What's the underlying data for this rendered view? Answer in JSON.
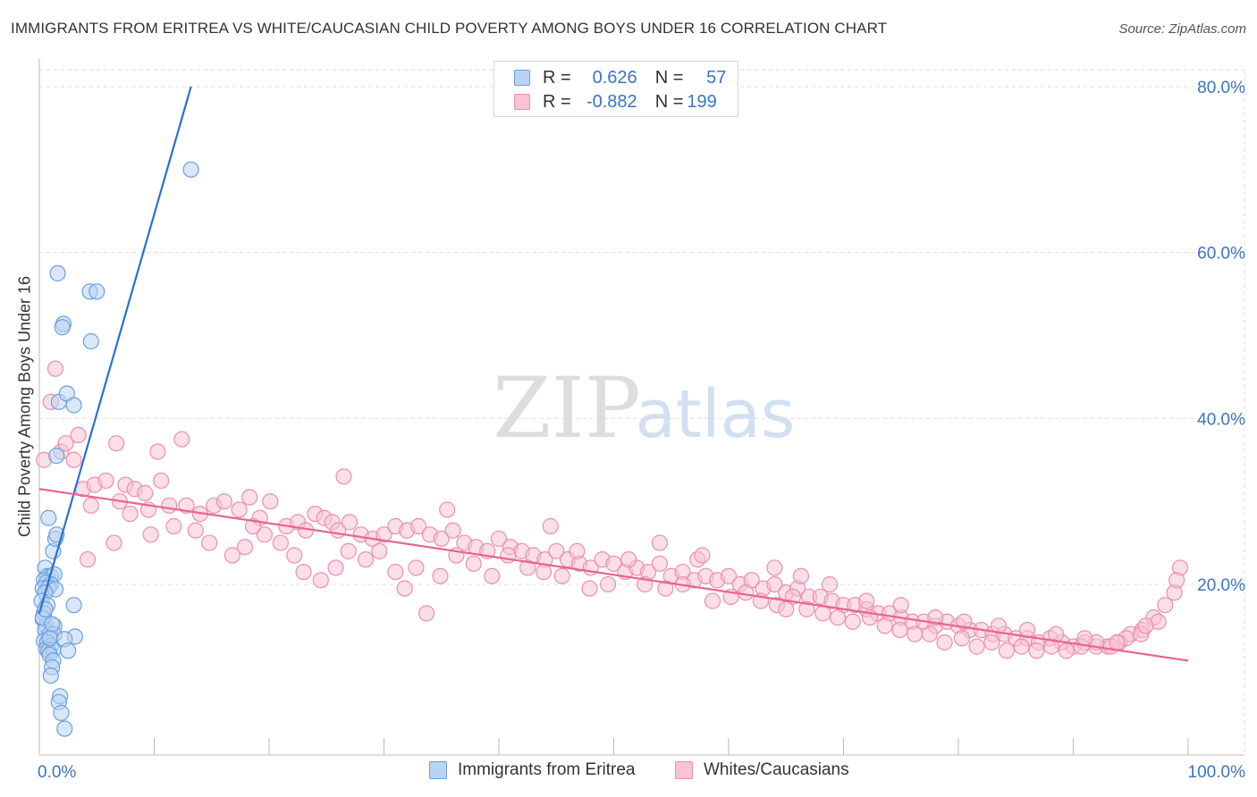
{
  "title": "IMMIGRANTS FROM ERITREA VS WHITE/CAUCASIAN CHILD POVERTY AMONG BOYS UNDER 16 CORRELATION CHART",
  "source": "Source: ZipAtlas.com",
  "watermark": {
    "zip": "ZIP",
    "atlas": "atlas"
  },
  "colors": {
    "blue_fill": "#b9d3f3",
    "blue_stroke": "#6a9fe0",
    "blue_line": "#2a6fd1",
    "pink_fill": "#f8c3d2",
    "pink_stroke": "#ea8fae",
    "pink_line": "#e8648f",
    "axis_label": "#3a74c4",
    "grid": "#dddddd"
  },
  "legend_top": [
    {
      "r_label": "R =",
      "r_value": "0.626",
      "n_label": "N =",
      "n_value": "57"
    },
    {
      "r_label": "R =",
      "r_value": "-0.882",
      "n_label": "N =",
      "n_value": "199"
    }
  ],
  "legend_bottom": [
    "Immigrants from Eritrea",
    "Whites/Caucasians"
  ],
  "chart_data": {
    "type": "scatter",
    "title": "IMMIGRANTS FROM ERITREA VS WHITE/CAUCASIAN CHILD POVERTY AMONG BOYS UNDER 16 CORRELATION CHART",
    "xlabel": "",
    "ylabel": "Child Poverty Among Boys Under 16",
    "xlim": [
      0,
      100
    ],
    "ylim": [
      0,
      82
    ],
    "x_tick_labels": [
      "0.0%",
      "100.0%"
    ],
    "y_ticks": [
      20,
      40,
      60,
      80
    ],
    "y_tick_labels": [
      "20.0%",
      "40.0%",
      "60.0%",
      "80.0%"
    ],
    "grid": true,
    "legend_placement": "top-center",
    "series": [
      {
        "name": "Immigrants from Eritrea",
        "color": "#6a9fe0",
        "trendline": {
          "x1": 0,
          "y1": 16.5,
          "x2": 13.2,
          "y2": 80
        },
        "points": [
          [
            13.2,
            70.0
          ],
          [
            1.6,
            57.5
          ],
          [
            4.4,
            55.3
          ],
          [
            5.0,
            55.3
          ],
          [
            2.1,
            51.4
          ],
          [
            2.0,
            51.0
          ],
          [
            4.5,
            49.3
          ],
          [
            1.7,
            42.0
          ],
          [
            2.4,
            43.0
          ],
          [
            3.0,
            41.6
          ],
          [
            1.5,
            35.5
          ],
          [
            0.8,
            28.0
          ],
          [
            1.2,
            24.0
          ],
          [
            1.4,
            25.5
          ],
          [
            1.5,
            26.0
          ],
          [
            0.5,
            22.0
          ],
          [
            0.7,
            21.0
          ],
          [
            1.0,
            21.0
          ],
          [
            1.3,
            21.2
          ],
          [
            0.4,
            20.5
          ],
          [
            0.6,
            20.2
          ],
          [
            1.0,
            20.0
          ],
          [
            0.3,
            19.5
          ],
          [
            0.8,
            19.6
          ],
          [
            1.4,
            19.4
          ],
          [
            0.5,
            19.0
          ],
          [
            0.2,
            18.0
          ],
          [
            0.7,
            17.5
          ],
          [
            3.0,
            17.5
          ],
          [
            0.4,
            16.5
          ],
          [
            0.3,
            15.8
          ],
          [
            0.6,
            15.0
          ],
          [
            1.3,
            15.0
          ],
          [
            0.5,
            14.5
          ],
          [
            0.9,
            14.0
          ],
          [
            1.3,
            14.0
          ],
          [
            3.1,
            13.7
          ],
          [
            2.2,
            13.4
          ],
          [
            0.4,
            13.2
          ],
          [
            0.7,
            13.0
          ],
          [
            1.0,
            12.6
          ],
          [
            0.6,
            12.2
          ],
          [
            0.8,
            12.0
          ],
          [
            1.2,
            12.1
          ],
          [
            2.5,
            12.0
          ],
          [
            0.9,
            11.5
          ],
          [
            1.2,
            10.8
          ],
          [
            1.1,
            10.0
          ],
          [
            1.0,
            9.0
          ],
          [
            1.8,
            6.5
          ],
          [
            1.7,
            5.8
          ],
          [
            1.9,
            4.5
          ],
          [
            2.2,
            2.6
          ],
          [
            0.3,
            16.0
          ],
          [
            0.5,
            17.0
          ],
          [
            1.1,
            15.2
          ],
          [
            0.9,
            13.5
          ]
        ]
      },
      {
        "name": "Whites/Caucasians",
        "color": "#ea8fae",
        "trendline": {
          "x1": 0,
          "y1": 31.5,
          "x2": 100,
          "y2": 10.8
        },
        "points": [
          [
            1.4,
            46.0
          ],
          [
            1.0,
            42.0
          ],
          [
            1.9,
            36.0
          ],
          [
            0.4,
            35.0
          ],
          [
            2.3,
            37.0
          ],
          [
            3.4,
            38.0
          ],
          [
            3.0,
            35.0
          ],
          [
            6.7,
            37.0
          ],
          [
            10.3,
            36.0
          ],
          [
            12.4,
            37.5
          ],
          [
            3.8,
            31.5
          ],
          [
            4.8,
            32.0
          ],
          [
            5.8,
            32.5
          ],
          [
            7.5,
            32.0
          ],
          [
            8.3,
            31.5
          ],
          [
            9.2,
            31.0
          ],
          [
            10.6,
            32.5
          ],
          [
            12.8,
            29.5
          ],
          [
            4.5,
            29.5
          ],
          [
            7.9,
            28.5
          ],
          [
            9.5,
            29.0
          ],
          [
            11.3,
            29.5
          ],
          [
            14.0,
            28.5
          ],
          [
            15.2,
            29.5
          ],
          [
            16.1,
            30.0
          ],
          [
            17.4,
            29.0
          ],
          [
            18.3,
            30.5
          ],
          [
            19.2,
            28.0
          ],
          [
            20.1,
            30.0
          ],
          [
            21.5,
            27.0
          ],
          [
            22.5,
            27.5
          ],
          [
            23.2,
            26.5
          ],
          [
            24.0,
            28.5
          ],
          [
            24.8,
            28.0
          ],
          [
            25.5,
            27.5
          ],
          [
            26.0,
            26.5
          ],
          [
            27.0,
            27.5
          ],
          [
            28.0,
            26.0
          ],
          [
            29.0,
            25.5
          ],
          [
            30.0,
            26.0
          ],
          [
            31.0,
            27.0
          ],
          [
            32.0,
            26.5
          ],
          [
            33.0,
            27.0
          ],
          [
            34.0,
            26.0
          ],
          [
            35.0,
            25.5
          ],
          [
            36.0,
            26.5
          ],
          [
            37.0,
            25.0
          ],
          [
            38.0,
            24.5
          ],
          [
            39.0,
            24.0
          ],
          [
            40.0,
            25.5
          ],
          [
            41.0,
            24.5
          ],
          [
            42.0,
            24.0
          ],
          [
            43.0,
            23.5
          ],
          [
            44.0,
            23.0
          ],
          [
            45.0,
            24.0
          ],
          [
            46.0,
            23.0
          ],
          [
            47.0,
            22.5
          ],
          [
            48.0,
            22.0
          ],
          [
            49.0,
            23.0
          ],
          [
            50.0,
            22.5
          ],
          [
            51.0,
            21.5
          ],
          [
            52.0,
            22.0
          ],
          [
            53.0,
            21.5
          ],
          [
            54.0,
            22.5
          ],
          [
            55.0,
            21.0
          ],
          [
            56.0,
            21.5
          ],
          [
            57.0,
            20.5
          ],
          [
            58.0,
            21.0
          ],
          [
            59.0,
            20.5
          ],
          [
            60.0,
            21.0
          ],
          [
            61.0,
            20.0
          ],
          [
            62.0,
            20.5
          ],
          [
            63.0,
            19.5
          ],
          [
            64.0,
            20.0
          ],
          [
            65.0,
            19.0
          ],
          [
            66.0,
            19.5
          ],
          [
            67.0,
            18.5
          ],
          [
            68.0,
            18.5
          ],
          [
            69.0,
            18.0
          ],
          [
            70.0,
            17.5
          ],
          [
            71.0,
            17.5
          ],
          [
            72.0,
            17.0
          ],
          [
            73.0,
            16.5
          ],
          [
            74.0,
            16.5
          ],
          [
            75.0,
            16.0
          ],
          [
            76.0,
            15.5
          ],
          [
            77.0,
            15.5
          ],
          [
            78.0,
            15.0
          ],
          [
            79.0,
            15.5
          ],
          [
            80.0,
            15.0
          ],
          [
            81.0,
            14.5
          ],
          [
            82.0,
            14.5
          ],
          [
            83.0,
            14.0
          ],
          [
            84.0,
            14.0
          ],
          [
            85.0,
            13.5
          ],
          [
            86.0,
            13.5
          ],
          [
            87.0,
            13.0
          ],
          [
            88.0,
            13.5
          ],
          [
            89.0,
            13.0
          ],
          [
            90.0,
            12.5
          ],
          [
            91.0,
            13.0
          ],
          [
            92.0,
            12.5
          ],
          [
            93.0,
            12.5
          ],
          [
            94.0,
            13.0
          ],
          [
            95.0,
            14.0
          ],
          [
            96.0,
            14.5
          ],
          [
            97.0,
            16.0
          ],
          [
            98.0,
            17.5
          ],
          [
            98.8,
            19.0
          ],
          [
            99.3,
            22.0
          ],
          [
            99.0,
            20.5
          ],
          [
            4.2,
            23.0
          ],
          [
            6.5,
            25.0
          ],
          [
            9.7,
            26.0
          ],
          [
            11.7,
            27.0
          ],
          [
            13.6,
            26.5
          ],
          [
            14.8,
            25.0
          ],
          [
            16.8,
            23.5
          ],
          [
            17.9,
            24.5
          ],
          [
            19.6,
            26.0
          ],
          [
            21.0,
            25.0
          ],
          [
            22.2,
            23.5
          ],
          [
            23.0,
            21.5
          ],
          [
            24.5,
            20.5
          ],
          [
            25.8,
            22.0
          ],
          [
            26.9,
            24.0
          ],
          [
            28.4,
            23.0
          ],
          [
            29.6,
            24.0
          ],
          [
            31.0,
            21.5
          ],
          [
            31.8,
            19.5
          ],
          [
            32.8,
            22.0
          ],
          [
            33.7,
            16.5
          ],
          [
            34.9,
            21.0
          ],
          [
            36.3,
            23.5
          ],
          [
            37.8,
            22.5
          ],
          [
            39.4,
            21.0
          ],
          [
            40.8,
            23.5
          ],
          [
            42.5,
            22.0
          ],
          [
            43.9,
            21.5
          ],
          [
            45.5,
            21.0
          ],
          [
            46.8,
            24.0
          ],
          [
            47.9,
            19.5
          ],
          [
            49.5,
            20.0
          ],
          [
            51.3,
            23.0
          ],
          [
            52.7,
            20.0
          ],
          [
            54.5,
            19.5
          ],
          [
            56.0,
            20.0
          ],
          [
            57.3,
            23.0
          ],
          [
            58.6,
            18.0
          ],
          [
            60.2,
            18.5
          ],
          [
            61.5,
            19.0
          ],
          [
            62.8,
            18.0
          ],
          [
            64.2,
            17.5
          ],
          [
            65.6,
            18.5
          ],
          [
            66.8,
            17.0
          ],
          [
            68.2,
            16.5
          ],
          [
            69.5,
            16.0
          ],
          [
            70.8,
            15.5
          ],
          [
            72.3,
            16.0
          ],
          [
            73.6,
            15.0
          ],
          [
            74.9,
            14.5
          ],
          [
            76.2,
            14.0
          ],
          [
            77.5,
            14.0
          ],
          [
            78.8,
            13.0
          ],
          [
            80.3,
            13.5
          ],
          [
            81.6,
            12.5
          ],
          [
            82.9,
            13.0
          ],
          [
            84.2,
            12.0
          ],
          [
            85.5,
            12.5
          ],
          [
            86.8,
            12.0
          ],
          [
            88.1,
            12.5
          ],
          [
            89.4,
            12.0
          ],
          [
            90.7,
            12.5
          ],
          [
            92.0,
            13.0
          ],
          [
            93.3,
            12.5
          ],
          [
            94.6,
            13.5
          ],
          [
            95.9,
            14.0
          ],
          [
            97.4,
            15.5
          ],
          [
            64.0,
            22.0
          ],
          [
            66.3,
            21.0
          ],
          [
            68.8,
            20.0
          ],
          [
            72.0,
            18.0
          ],
          [
            75.0,
            17.5
          ],
          [
            78.0,
            16.0
          ],
          [
            80.5,
            15.5
          ],
          [
            83.5,
            15.0
          ],
          [
            86.0,
            14.5
          ],
          [
            88.5,
            14.0
          ],
          [
            91.0,
            13.5
          ],
          [
            93.8,
            13.0
          ],
          [
            96.3,
            15.0
          ],
          [
            7.0,
            30.0
          ],
          [
            18.6,
            27.0
          ],
          [
            26.5,
            33.0
          ],
          [
            35.5,
            29.0
          ],
          [
            44.5,
            27.0
          ],
          [
            54.0,
            25.0
          ],
          [
            57.7,
            23.5
          ],
          [
            65.0,
            17.0
          ]
        ]
      }
    ]
  }
}
